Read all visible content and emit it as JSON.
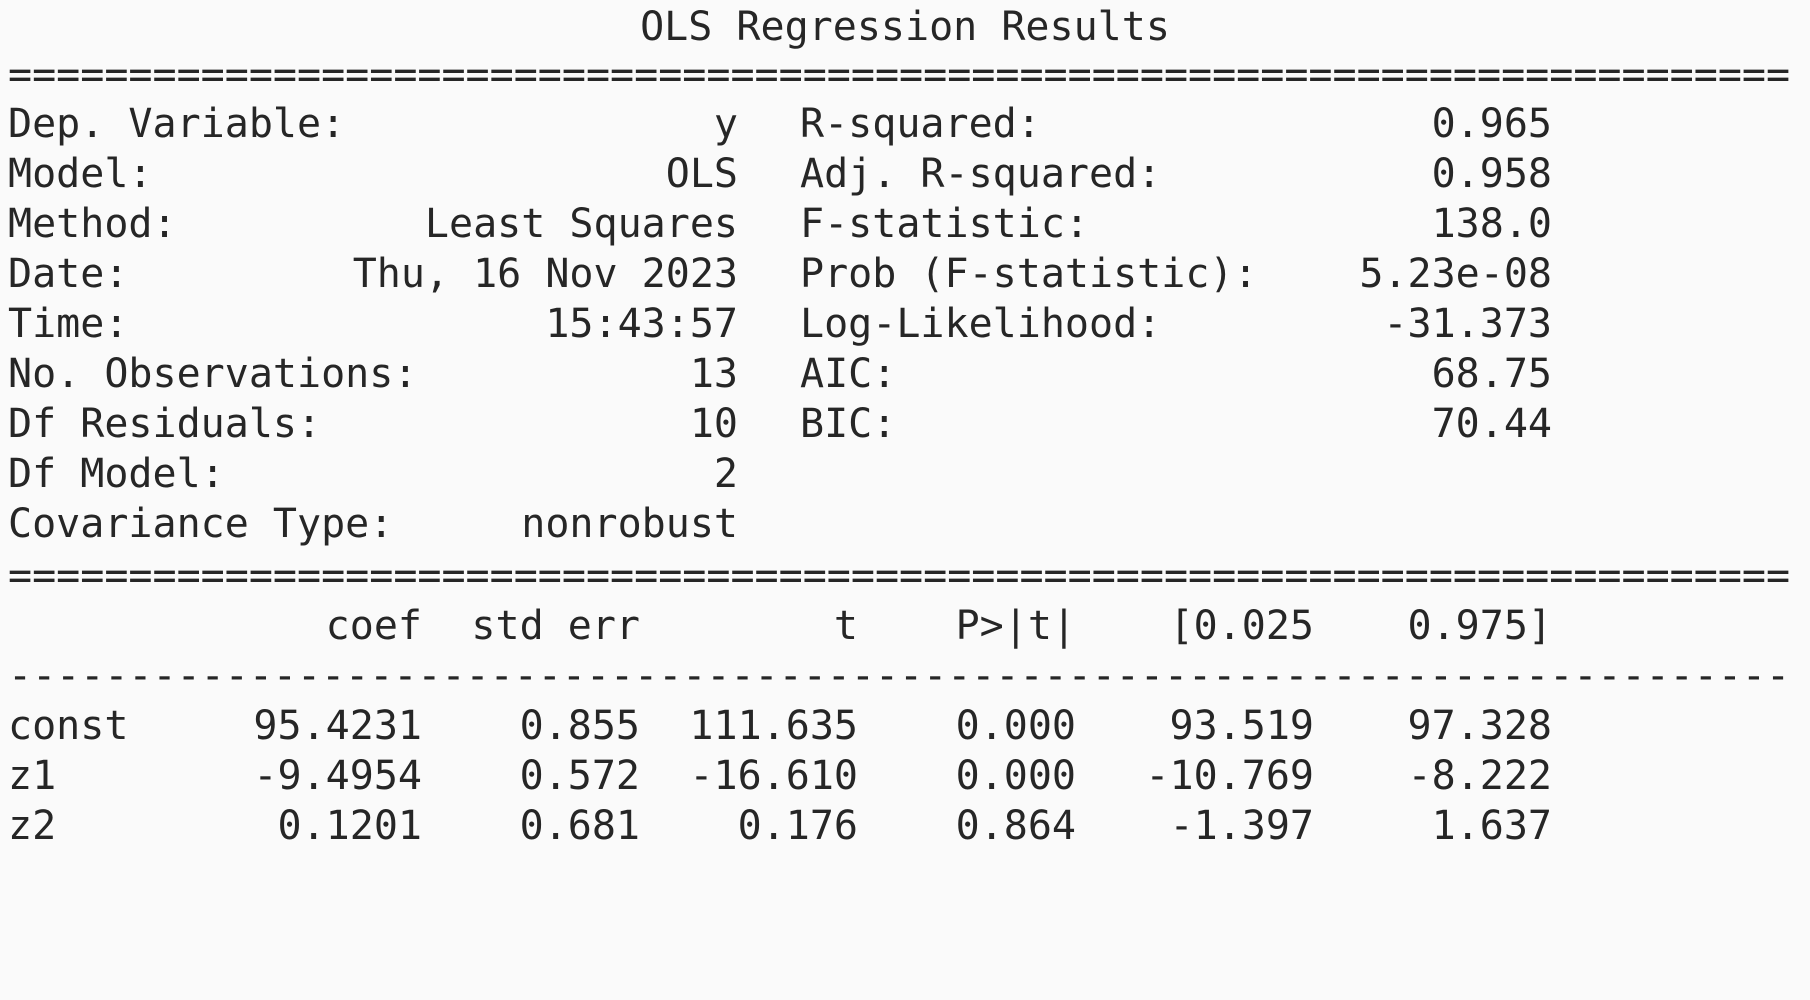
{
  "title": "OLS Regression Results",
  "rule_double": "==============================================================================",
  "rule_single": "------------------------------------------------------------------------------",
  "summary_left": [
    {
      "label": "Dep. Variable:",
      "value": "y"
    },
    {
      "label": "Model:",
      "value": "OLS"
    },
    {
      "label": "Method:",
      "value": "Least Squares"
    },
    {
      "label": "Date:",
      "value": "Thu, 16 Nov 2023"
    },
    {
      "label": "Time:",
      "value": "15:43:57"
    },
    {
      "label": "No. Observations:",
      "value": "13"
    },
    {
      "label": "Df Residuals:",
      "value": "10"
    },
    {
      "label": "Df Model:",
      "value": "2"
    },
    {
      "label": "Covariance Type:",
      "value": "nonrobust"
    }
  ],
  "summary_right": [
    {
      "label": "R-squared:",
      "value": "0.965"
    },
    {
      "label": "Adj. R-squared:",
      "value": "0.958"
    },
    {
      "label": "F-statistic:",
      "value": "138.0"
    },
    {
      "label": "Prob (F-statistic):",
      "value": "5.23e-08"
    },
    {
      "label": "Log-Likelihood:",
      "value": "-31.373"
    },
    {
      "label": "AIC:",
      "value": "68.75"
    },
    {
      "label": "BIC:",
      "value": "70.44"
    }
  ],
  "coef_table": {
    "headers": [
      "",
      "coef",
      "std err",
      "t",
      "P>|t|",
      "[0.025",
      "0.975]"
    ],
    "rows": [
      [
        "const",
        "95.4231",
        "0.855",
        "111.635",
        "0.000",
        "93.519",
        "97.328"
      ],
      [
        "z1",
        "-9.4954",
        "0.572",
        "-16.610",
        "0.000",
        "-10.769",
        "-8.222"
      ],
      [
        "z2",
        "0.1201",
        "0.681",
        "0.176",
        "0.864",
        "-1.397",
        "1.637"
      ]
    ]
  }
}
